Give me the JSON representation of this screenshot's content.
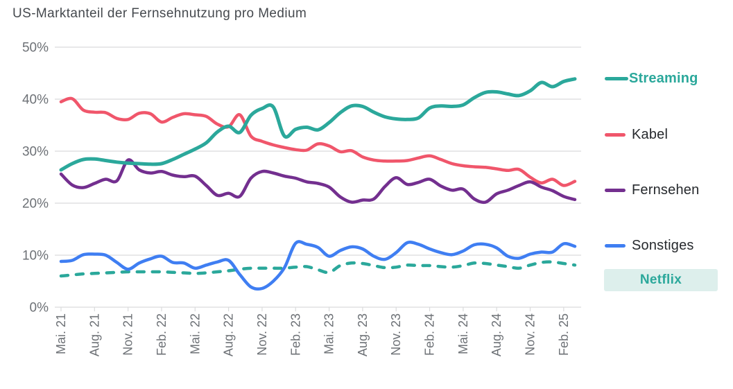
{
  "title": "US-Marktanteil der Fernsehnutzung pro Medium",
  "colors": {
    "teal": "#2ba89b",
    "red": "#f0566b",
    "purple": "#732f8f",
    "blue": "#3f7ef2",
    "badge_bg": "#ddefec",
    "grid": "#dadbdc",
    "axis_text": "#6d7176",
    "title_text": "#45494e",
    "legend_text": "#26292d"
  },
  "chart_data": {
    "type": "line",
    "title": "US-Marktanteil der Fernsehnutzung pro Medium",
    "ylabel": "",
    "xlabel": "",
    "ylim": [
      0,
      50
    ],
    "grid": true,
    "legend_position": "right",
    "y_tick_labels": [
      "50%",
      "40%",
      "30%",
      "20%",
      "10%",
      "0%"
    ],
    "x_tick_labels": [
      "Mai. 21",
      "Aug. 21",
      "Nov. 21",
      "Feb. 22",
      "Mai. 22",
      "Aug. 22",
      "Nov. 22",
      "Feb. 23",
      "Mai. 23",
      "Aug. 23",
      "Nov. 23",
      "Feb. 24",
      "Mai. 24",
      "Aug. 24",
      "Nov. 24",
      "Feb. 25"
    ],
    "points_per_tick": 3,
    "x_is_monthly_from": "Mai. 21",
    "series": [
      {
        "name": "Streaming",
        "color": "#2ba89b",
        "style": "solid",
        "emphasis": true,
        "values": [
          26.4,
          27.6,
          28.4,
          28.5,
          28.2,
          27.9,
          27.7,
          27.6,
          27.5,
          27.6,
          28.4,
          29.4,
          30.4,
          31.6,
          33.7,
          34.8,
          33.6,
          36.9,
          38.2,
          38.5,
          32.9,
          34.2,
          34.6,
          34.1,
          35.5,
          37.4,
          38.7,
          38.6,
          37.5,
          36.6,
          36.2,
          36.1,
          36.4,
          38.3,
          38.7,
          38.6,
          38.9,
          40.3,
          41.3,
          41.4,
          41.0,
          40.7,
          41.6,
          43.2,
          42.4,
          43.4,
          43.9
        ]
      },
      {
        "name": "Kabel",
        "color": "#f0566b",
        "style": "solid",
        "emphasis": false,
        "values": [
          39.5,
          40.1,
          37.9,
          37.5,
          37.4,
          36.3,
          36.1,
          37.3,
          37.2,
          35.6,
          36.5,
          37.2,
          37.0,
          36.7,
          35.2,
          34.7,
          37.0,
          32.9,
          31.9,
          31.2,
          30.7,
          30.3,
          30.2,
          31.4,
          31.0,
          29.9,
          30.1,
          28.9,
          28.3,
          28.1,
          28.1,
          28.2,
          28.7,
          29.1,
          28.4,
          27.6,
          27.2,
          27.0,
          26.9,
          26.6,
          26.3,
          26.5,
          25.0,
          23.9,
          24.6,
          23.4,
          24.2
        ]
      },
      {
        "name": "Fernsehen",
        "color": "#732f8f",
        "style": "solid",
        "emphasis": false,
        "values": [
          25.6,
          23.5,
          23.0,
          23.8,
          24.6,
          24.3,
          28.3,
          26.4,
          25.8,
          26.1,
          25.4,
          25.1,
          25.2,
          23.4,
          21.5,
          21.9,
          21.3,
          24.8,
          26.1,
          25.8,
          25.2,
          24.8,
          24.1,
          23.8,
          23.1,
          21.2,
          20.2,
          20.6,
          20.8,
          23.2,
          24.9,
          23.6,
          24.0,
          24.6,
          23.3,
          22.5,
          22.7,
          20.8,
          20.2,
          21.8,
          22.5,
          23.4,
          24.1,
          23.1,
          22.4,
          21.3,
          20.7
        ]
      },
      {
        "name": "Sonstiges",
        "color": "#3f7ef2",
        "style": "solid",
        "emphasis": false,
        "values": [
          8.8,
          9.0,
          10.1,
          10.2,
          10.0,
          8.6,
          7.3,
          8.5,
          9.3,
          9.8,
          8.6,
          8.5,
          7.5,
          8.1,
          8.7,
          9.0,
          6.3,
          3.9,
          3.6,
          5.0,
          7.6,
          12.3,
          12.1,
          11.5,
          9.8,
          10.9,
          11.6,
          11.2,
          9.8,
          9.2,
          10.5,
          12.4,
          12.1,
          11.2,
          10.5,
          10.1,
          10.8,
          12.0,
          12.1,
          11.4,
          9.8,
          9.4,
          10.2,
          10.6,
          10.6,
          12.2,
          11.7
        ]
      },
      {
        "name": "Netflix",
        "color": "#2ba89b",
        "style": "dashed",
        "emphasis": true,
        "badge": true,
        "values": [
          6.0,
          6.2,
          6.4,
          6.5,
          6.6,
          6.7,
          6.8,
          6.8,
          6.8,
          6.8,
          6.7,
          6.6,
          6.5,
          6.6,
          6.8,
          7.0,
          7.3,
          7.5,
          7.5,
          7.5,
          7.5,
          7.7,
          7.8,
          7.2,
          6.7,
          8.0,
          8.5,
          8.4,
          8.0,
          7.6,
          7.7,
          8.1,
          8.0,
          8.0,
          7.8,
          7.7,
          8.0,
          8.5,
          8.4,
          8.1,
          7.8,
          7.5,
          8.1,
          8.6,
          8.7,
          8.4,
          8.1
        ]
      }
    ]
  }
}
